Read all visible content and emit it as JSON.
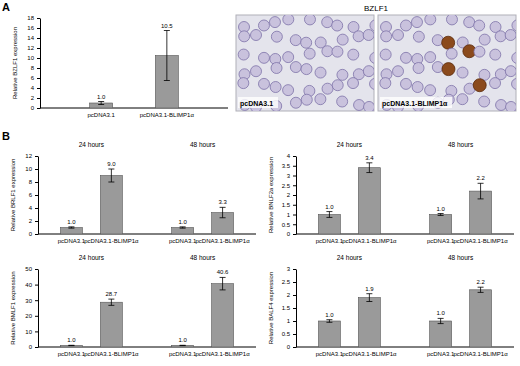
{
  "panel_labels": [
    "A",
    "B"
  ],
  "micrographs": {
    "title": "BZLF1",
    "labels": [
      "pcDNA3.1",
      "pcDNA3.1-BLIMP1α"
    ]
  },
  "chart_data": [
    {
      "type": "bar",
      "y_label": "Relative BZLF1 expression",
      "categories": [
        "pcDNA3.1",
        "pcDNA3.1-BLIMP1α"
      ],
      "values": [
        1.0,
        10.5
      ],
      "value_labels": [
        "1.0",
        "10.5"
      ],
      "errors": [
        0.3,
        5.0
      ],
      "ylim": [
        0,
        18
      ],
      "yticks": [
        0,
        2,
        4,
        6,
        8,
        10,
        12,
        14,
        16,
        18
      ],
      "color": "#9a9a9a",
      "data_labels": true,
      "grid": false
    },
    {
      "type": "bar",
      "y_label": "Relative BRLF1 expression",
      "group_labels": [
        "24 hours",
        "48 hours"
      ],
      "categories": [
        "pcDNA3.1",
        "pcDNA3.1-BLIMP1α",
        "pcDNA3.1",
        "pcDNA3.1-BLIMP1α"
      ],
      "values": [
        1.0,
        9.0,
        1.0,
        3.3
      ],
      "value_labels": [
        "1.0",
        "9.0",
        "1.0",
        "3.3"
      ],
      "errors": [
        0.1,
        1.0,
        0.1,
        0.8
      ],
      "ylim": [
        0,
        12
      ],
      "yticks": [
        0,
        2,
        4,
        6,
        8,
        10,
        12
      ],
      "color": "#9a9a9a",
      "data_labels": true,
      "grid": false
    },
    {
      "type": "bar",
      "y_label": "Relative BNLF2a expression",
      "group_labels": [
        "24 hours",
        "48 hours"
      ],
      "categories": [
        "pcDNA3.1",
        "pcDNA3.1-BLIMP1α",
        "pcDNA3.1",
        "pcDNA3.1-BLIMP1α"
      ],
      "values": [
        1.0,
        3.4,
        1.0,
        2.2
      ],
      "value_labels": [
        "1.0",
        "3.4",
        "1.0",
        "2.2"
      ],
      "errors": [
        0.15,
        0.25,
        0.05,
        0.4
      ],
      "ylim": [
        0,
        4
      ],
      "yticks": [
        0,
        0.5,
        1,
        1.5,
        2,
        2.5,
        3,
        3.5,
        4
      ],
      "color": "#9a9a9a",
      "data_labels": true,
      "grid": false
    },
    {
      "type": "bar",
      "y_label": "Relative BMLF1 expression",
      "group_labels": [
        "24 hours",
        "48 hours"
      ],
      "categories": [
        "pcDNA3.1",
        "pcDNA3.1-BLIMP1α",
        "pcDNA3.1",
        "pcDNA3.1-BLIMP1α"
      ],
      "values": [
        1.0,
        28.7,
        1.0,
        40.6
      ],
      "value_labels": [
        "1.0",
        "28.7",
        "1.0",
        "40.6"
      ],
      "errors": [
        0.1,
        2.0,
        0.1,
        4.0
      ],
      "ylim": [
        0,
        50
      ],
      "yticks": [
        0,
        10,
        20,
        30,
        40,
        50
      ],
      "color": "#9a9a9a",
      "data_labels": true,
      "grid": false
    },
    {
      "type": "bar",
      "y_label": "Relative BALF4 expression",
      "group_labels": [
        "24 hours",
        "48 hours"
      ],
      "categories": [
        "pcDNA3.1",
        "pcDNA3.1-BLIMP1α",
        "pcDNA3.1",
        "pcDNA3.1-BLIMP1α"
      ],
      "values": [
        1.0,
        1.9,
        1.0,
        2.2
      ],
      "value_labels": [
        "1.0",
        "1.9",
        "1.0",
        "2.2"
      ],
      "errors": [
        0.05,
        0.15,
        0.1,
        0.1
      ],
      "ylim": [
        0,
        3
      ],
      "yticks": [
        0,
        0.5,
        1,
        1.5,
        2,
        2.5,
        3
      ],
      "color": "#9a9a9a",
      "data_labels": true,
      "grid": false
    }
  ]
}
